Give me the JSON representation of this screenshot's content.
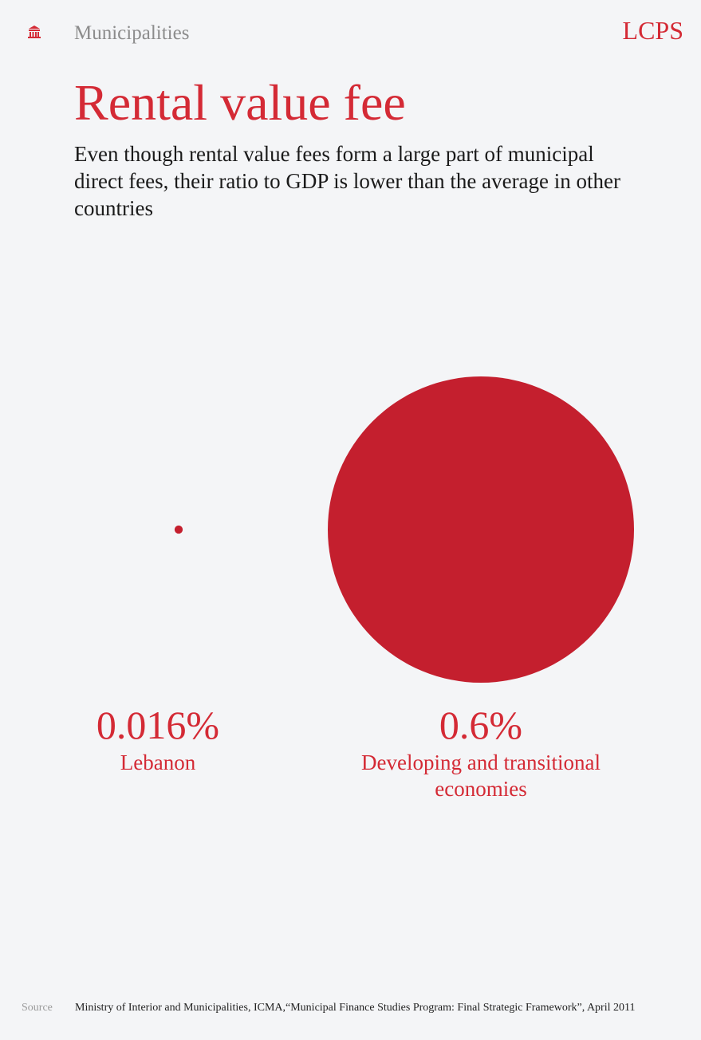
{
  "header": {
    "section": "Municipalities",
    "logo": "LCPS"
  },
  "chart_data": {
    "type": "bubble",
    "title": "Rental value fee",
    "subtitle": "Even though rental value fees form a large part of municipal direct fees, their ratio to GDP is lower than the average in other countries",
    "categories": [
      "Lebanon",
      "Developing and transitional economies"
    ],
    "values": [
      0.016,
      0.6
    ],
    "value_labels": [
      "0.016%",
      "0.6%"
    ],
    "color": "#c41f2e"
  },
  "footer": {
    "source_label": "Source",
    "source": "Ministry of Interior and Municipalities, ICMA,“Municipal Finance Studies Program: Final Strategic Framework”, April 2011"
  }
}
